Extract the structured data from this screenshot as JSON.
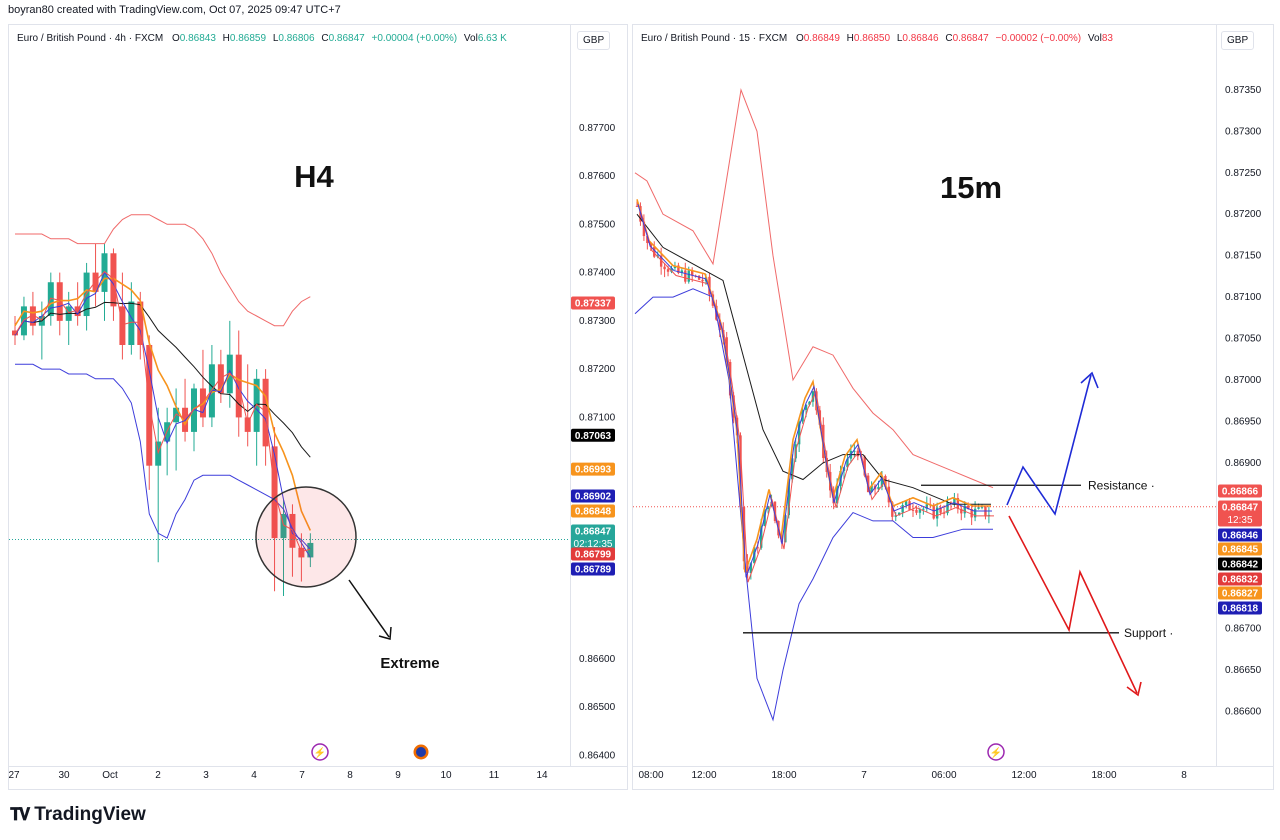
{
  "header": {
    "text": "boyran80 created with TradingView.com, Oct 07, 2025 09:47 UTC+7"
  },
  "brand": {
    "logo_icon": "tv-logo-icon",
    "name": "TradingView"
  },
  "colors": {
    "up": "#22ab94",
    "down": "#f05350",
    "bb_upper": "#f06a6a",
    "bb_lower": "#3d3ddb",
    "ma_orange": "#f7941d",
    "ma_black": "#1a1a1a",
    "ma_red": "#f05350",
    "ma_blue": "#3d3ddb"
  },
  "left": {
    "legend": {
      "symbol": "Euro / British Pound · 4h · FXCM",
      "o_label": "O",
      "o": "0.86843",
      "h_label": "H",
      "h": "0.86859",
      "l_label": "L",
      "l": "0.86806",
      "c_label": "C",
      "c": "0.86847",
      "change": "+0.00004 (+0.00%)",
      "vol_label": "Vol",
      "vol": "6.63 K"
    },
    "currency": "GBP",
    "annotations": {
      "timeframe": "H4",
      "note": "Extreme"
    }
  },
  "right": {
    "legend": {
      "symbol": "Euro / British Pound · 15 · FXCM",
      "o_label": "O",
      "o": "0.86849",
      "h_label": "H",
      "h": "0.86850",
      "l_label": "L",
      "l": "0.86846",
      "c_label": "C",
      "c": "0.86847",
      "change": "−0.00002 (−0.00%)",
      "vol_label": "Vol",
      "vol": "83"
    },
    "currency": "GBP",
    "annotations": {
      "timeframe": "15m",
      "resistance": "Resistance",
      "support": "Support"
    }
  },
  "chart_data": [
    {
      "type": "candlestick",
      "title": "Euro / British Pound · 4h · FXCM",
      "ylabel": "GBP",
      "ylim": [
        0.8638,
        0.8783
      ],
      "yticks": [
        "0.87700",
        "0.87600",
        "0.87500",
        "0.87400",
        "0.87300",
        "0.87200",
        "0.87100",
        "0.86600",
        "0.86500",
        "0.86400"
      ],
      "xticks": [
        "27",
        "30",
        "Oct",
        "2",
        "3",
        "4",
        "7",
        "8",
        "9",
        "10",
        "11",
        "14"
      ],
      "price_labels": [
        {
          "value": "0.87337",
          "kind": "upper"
        },
        {
          "value": "0.87063",
          "kind": "black"
        },
        {
          "value": "0.86993",
          "kind": "orange"
        },
        {
          "value": "0.86902",
          "kind": "blue"
        },
        {
          "value": "0.86848",
          "kind": "orange"
        },
        {
          "value": "0.86847",
          "kind": "current",
          "sub": "02:12:35"
        },
        {
          "value": "0.86799",
          "kind": "red"
        },
        {
          "value": "0.86789",
          "kind": "blue"
        }
      ],
      "candles_ohlc": [
        [
          0.8728,
          0.8731,
          0.8725,
          0.8727
        ],
        [
          0.8727,
          0.8735,
          0.8726,
          0.8733
        ],
        [
          0.8733,
          0.8736,
          0.8727,
          0.8729
        ],
        [
          0.8729,
          0.8734,
          0.8722,
          0.8731
        ],
        [
          0.8731,
          0.874,
          0.8729,
          0.8738
        ],
        [
          0.8738,
          0.874,
          0.8727,
          0.873
        ],
        [
          0.873,
          0.8736,
          0.8725,
          0.8733
        ],
        [
          0.8733,
          0.8738,
          0.8729,
          0.8731
        ],
        [
          0.8731,
          0.8742,
          0.8728,
          0.874
        ],
        [
          0.874,
          0.8746,
          0.8733,
          0.8736
        ],
        [
          0.8736,
          0.8746,
          0.873,
          0.8744
        ],
        [
          0.8744,
          0.8745,
          0.873,
          0.8733
        ],
        [
          0.8733,
          0.874,
          0.8722,
          0.8725
        ],
        [
          0.8725,
          0.8738,
          0.8723,
          0.8734
        ],
        [
          0.8734,
          0.8736,
          0.8722,
          0.8725
        ],
        [
          0.8725,
          0.8727,
          0.8695,
          0.87
        ],
        [
          0.87,
          0.8712,
          0.868,
          0.8705
        ],
        [
          0.8705,
          0.8712,
          0.8698,
          0.8709
        ],
        [
          0.8709,
          0.8716,
          0.8699,
          0.8712
        ],
        [
          0.8712,
          0.8718,
          0.8705,
          0.8707
        ],
        [
          0.8707,
          0.8717,
          0.8703,
          0.8716
        ],
        [
          0.8716,
          0.8724,
          0.8708,
          0.871
        ],
        [
          0.871,
          0.8725,
          0.8708,
          0.8721
        ],
        [
          0.8721,
          0.8724,
          0.8713,
          0.8715
        ],
        [
          0.8715,
          0.873,
          0.8712,
          0.8723
        ],
        [
          0.8723,
          0.8728,
          0.8706,
          0.871
        ],
        [
          0.871,
          0.8721,
          0.8704,
          0.8707
        ],
        [
          0.8707,
          0.872,
          0.87,
          0.8718
        ],
        [
          0.8718,
          0.872,
          0.87,
          0.8704
        ],
        [
          0.8704,
          0.8708,
          0.8674,
          0.8685
        ],
        [
          0.8685,
          0.8693,
          0.8673,
          0.869
        ],
        [
          0.869,
          0.8692,
          0.8677,
          0.8683
        ],
        [
          0.8683,
          0.8686,
          0.8676,
          0.8681
        ],
        [
          0.8681,
          0.8686,
          0.8679,
          0.8684
        ]
      ]
    },
    {
      "type": "candlestick",
      "title": "Euro / British Pound · 15 · FXCM",
      "ylabel": "GBP",
      "ylim": [
        0.8655,
        0.8738
      ],
      "yticks": [
        "0.87350",
        "0.87300",
        "0.87250",
        "0.87200",
        "0.87150",
        "0.87100",
        "0.87050",
        "0.87000",
        "0.86950",
        "0.86900",
        "0.86700",
        "0.86650",
        "0.86600"
      ],
      "xticks": [
        "08:00",
        "12:00",
        "18:00",
        "7",
        "06:00",
        "12:00",
        "18:00",
        "8"
      ],
      "price_labels": [
        {
          "value": "0.86866",
          "kind": "upper"
        },
        {
          "value": "0.86847",
          "kind": "current-red",
          "sub": "12:35"
        },
        {
          "value": "0.86846",
          "kind": "blue"
        },
        {
          "value": "0.86845",
          "kind": "orange"
        },
        {
          "value": "0.86842",
          "kind": "black"
        },
        {
          "value": "0.86832",
          "kind": "red"
        },
        {
          "value": "0.86827",
          "kind": "orange"
        },
        {
          "value": "0.86818",
          "kind": "blue"
        }
      ],
      "levels": [
        {
          "name": "Resistance",
          "value": 0.86873
        },
        {
          "name": "Support",
          "value": 0.86695
        }
      ],
      "projection_up": [
        [
          0.8685
        ],
        [
          0.86884
        ],
        [
          0.8685
        ],
        [
          0.87
        ]
      ],
      "projection_down": [
        [
          0.8684
        ],
        [
          0.8671
        ],
        [
          0.8677
        ],
        [
          0.8664
        ]
      ]
    }
  ]
}
